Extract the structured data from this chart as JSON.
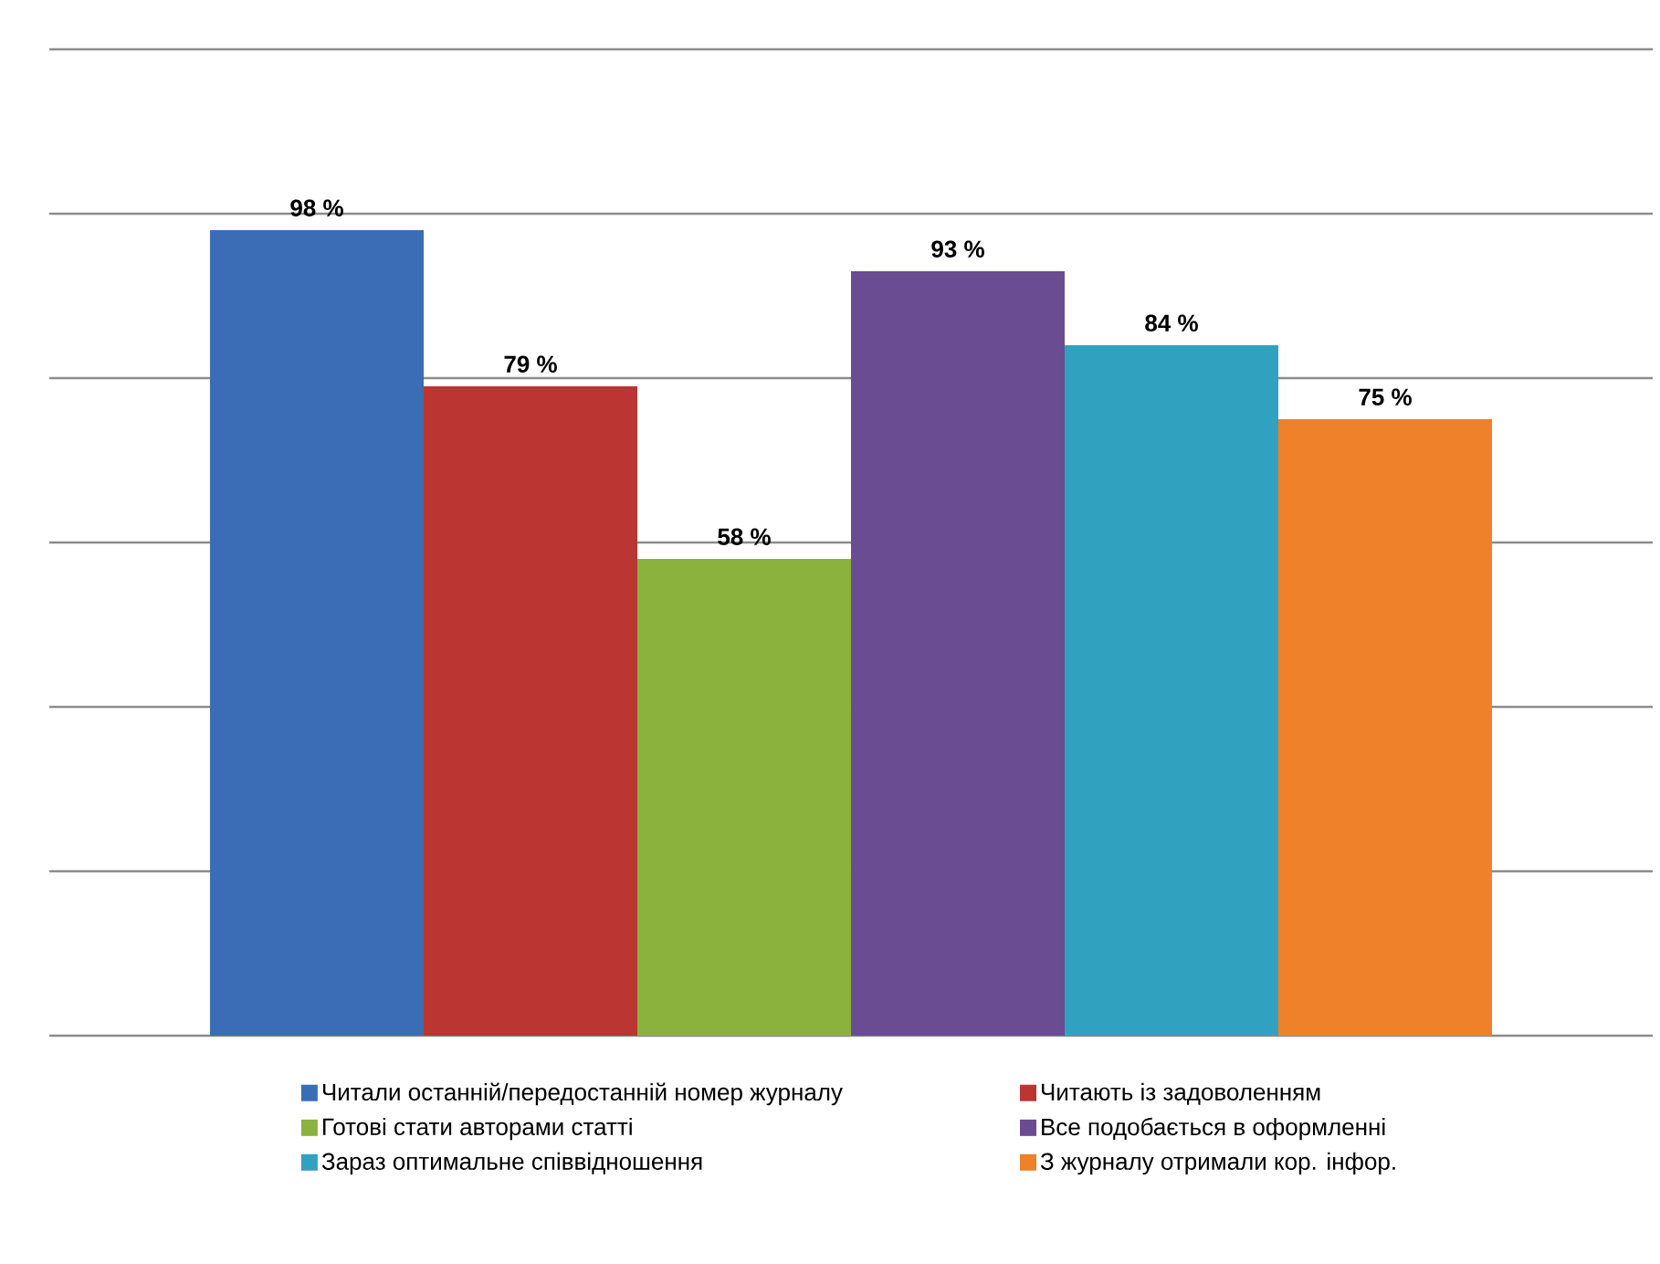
{
  "chart_data": {
    "type": "bar",
    "categories": [
      null
    ],
    "series": [
      {
        "name": "Читали останній/передостанній номер журналу",
        "color": "#3a6db5",
        "values": [
          98
        ],
        "value_labels": [
          "98 %"
        ]
      },
      {
        "name": "Читають із задоволенням",
        "color": "#bb3532",
        "values": [
          79
        ],
        "value_labels": [
          "79 %"
        ]
      },
      {
        "name": "Готові стати авторами статті",
        "color": "#8cb23e",
        "values": [
          58
        ],
        "value_labels": [
          "58 %"
        ]
      },
      {
        "name": "Все подобається в оформленні",
        "color": "#6a4c92",
        "values": [
          93
        ],
        "value_labels": [
          "93 %"
        ]
      },
      {
        "name": "Зараз оптимальне співвідношення",
        "color": "#31a1c0",
        "values": [
          84
        ],
        "value_labels": [
          "84 %"
        ]
      },
      {
        "name": "З журналу отримали кор. інфор.",
        "color": "#ee8129",
        "values": [
          75
        ],
        "value_labels": [
          "75 %"
        ]
      }
    ],
    "ylim": [
      0,
      120
    ],
    "yticks": [
      {
        "value": 0,
        "label": null
      },
      {
        "value": 20,
        "label": null
      },
      {
        "value": 40,
        "label": null
      },
      {
        "value": 60,
        "label": null
      },
      {
        "value": 80,
        "label": null
      },
      {
        "value": 100,
        "label": null
      },
      {
        "value": 120,
        "label": null
      }
    ],
    "grid": "y",
    "legend": "bottom"
  }
}
